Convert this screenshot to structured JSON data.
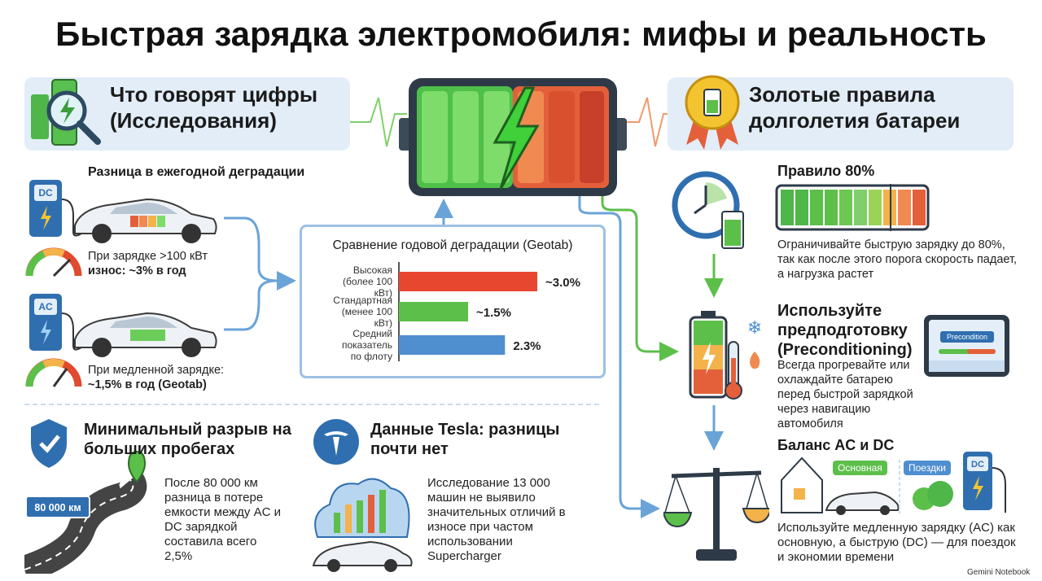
{
  "title": "Быстрая зарядка электромобиля: мифы и реальность",
  "research": {
    "heading": "Что говорят цифры (Исследования)",
    "subheading": "Разница в ежегодной деградации",
    "dc": {
      "badge": "DC",
      "text": "При зарядке >100 кВт",
      "strong": "износ: ~3% в год"
    },
    "ac": {
      "badge": "AC",
      "text": "При медленной зарядке:",
      "strong": "~1,5% в год (Geotab)"
    }
  },
  "chart": {
    "type": "bar",
    "title": "Сравнение годовой деградации (Geotab)",
    "categories": [
      "Высокая (более 100 кВт)",
      "Стандартная (менее 100 кВт)",
      "Средний показатель по флоту"
    ],
    "values": [
      3.0,
      1.5,
      2.3
    ],
    "value_labels": [
      "~3.0%",
      "~1.5%",
      "2.3%"
    ],
    "colors": [
      "#e8472f",
      "#5cbf4a",
      "#4f8fd0"
    ]
  },
  "mileage": {
    "heading": "Минимальный разрыв на больших пробегах",
    "sign": "80 000 км",
    "text": "После 80 000 км разница в потере емкости между AC и DC зарядкой составила всего 2,5%"
  },
  "tesla": {
    "heading": "Данные Tesla: разницы почти нет",
    "text": "Исследование 13 000 машин не выявило значительных отличий в износе при частом использовании Supercharger"
  },
  "rules": {
    "heading": "Золотые правила долголетия батареи",
    "items": [
      {
        "title": "Правило 80%",
        "text": "Ограничивайте быструю зарядку до 80%, так как после этого порога скорость падает, а нагрузка растет"
      },
      {
        "title": "Используйте предподготовку (Preconditioning)",
        "text": "Всегда прогревайте или охлаждайте батарею перед быстрой зарядкой через навигацию автомобиля",
        "screen": "Precondition"
      },
      {
        "title": "Баланс AC и DC",
        "tags": [
          "Основная",
          "Поездки"
        ],
        "badge": "DC",
        "text": "Используйте медленную зарядку (AC) как основную, а быструю (DC) — для поездок и экономии времени"
      }
    ]
  },
  "footer": "Gemini Notebook"
}
